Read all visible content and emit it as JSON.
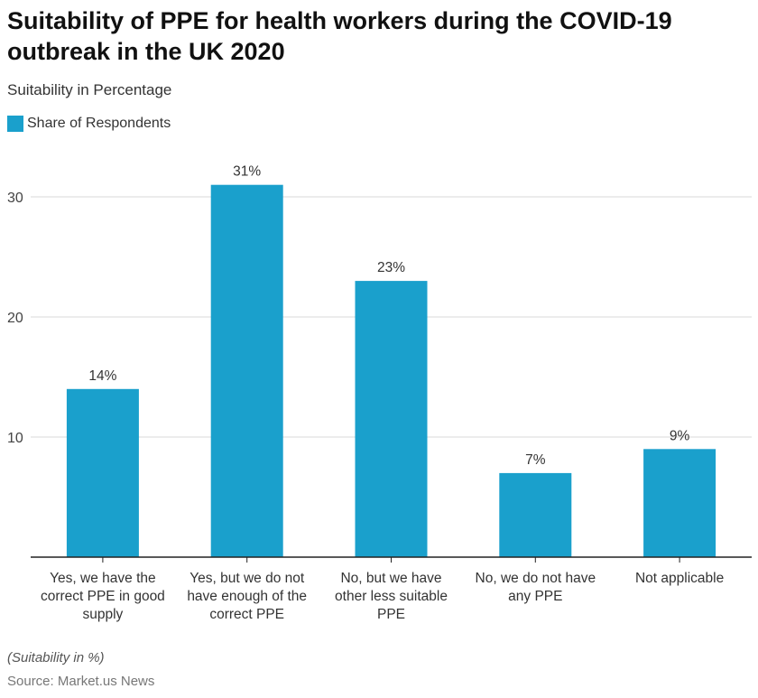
{
  "title": "Suitability of PPE for health workers during the COVID-19 outbreak in the UK 2020",
  "subtitle": "Suitability in Percentage",
  "note": "(Suitability in %)",
  "source": "Source: Market.us News",
  "colors": {
    "bar": "#1aa0cc"
  },
  "chart_data": {
    "type": "bar",
    "categories": [
      "Yes, we have the correct PPE in good supply",
      "Yes, but we do not have enough of the correct PPE",
      "No, but we have other less suitable PPE",
      "No, we do not have any PPE",
      "Not applicable"
    ],
    "series": [
      {
        "name": "Share of Respondents",
        "values": [
          14,
          31,
          23,
          7,
          9
        ]
      }
    ],
    "data_labels": [
      "14%",
      "31%",
      "23%",
      "7%",
      "9%"
    ],
    "ylim": [
      0,
      30
    ],
    "yticks": [
      "10",
      "20",
      "30"
    ],
    "grid": true,
    "legend": "top-left"
  }
}
